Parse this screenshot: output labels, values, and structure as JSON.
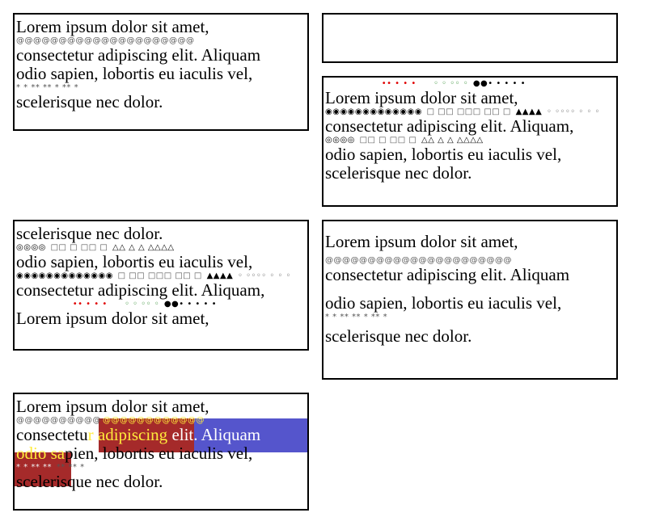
{
  "texts": {
    "l1": "Lorem ipsum dolor sit amet,",
    "l2": "consectetur adipiscing elit. Aliquam",
    "l2c": "consectetur adipiscing elit. Aliquam,",
    "l3": "odio sapien, lobortis eu iaculis vel,",
    "l4": "scelerisque nec dolor.",
    "at_marks_a": "@@@@@@@@@@@@@@@@@@@@@",
    "at_marks_b": "@@@@@@@@@@@@@@@@@@@@@@",
    "star_marks": "* * **   ** * ** *",
    "sel_consectetu": "consectetu",
    "sel_r_adip": "r adipiscing",
    "sel_elit": " elit. Aliquam",
    "sel_odio_sa": "odio sa",
    "sel_rest": "pien, lobortis eu iaculis vel,",
    "at_left": "@@@@@@@@@@",
    "at_right": "@@@@@@@@@@@@",
    "star_left": "* * **   **",
    "star_right": "** ** *"
  },
  "marks": {
    "dots_red": "•• • • •",
    "dots_green": "◦ ◦ ◦◦ ◦",
    "dots_black": "●●• • •   • •",
    "circles": "◉◉◉◉◉◉◉◉◉◉◉◉◉",
    "squares_a": "□ □□ □□□ □□ □",
    "triangles_a": "▲▲▲▲",
    "small_circles": "◦ ◦◦◦◦ ◦ ◦ ◦",
    "circles_b": "◎◎◎◎",
    "squares_b": "□□ □ □□ □",
    "triangles_b": "△△ △ △ △△△△"
  }
}
